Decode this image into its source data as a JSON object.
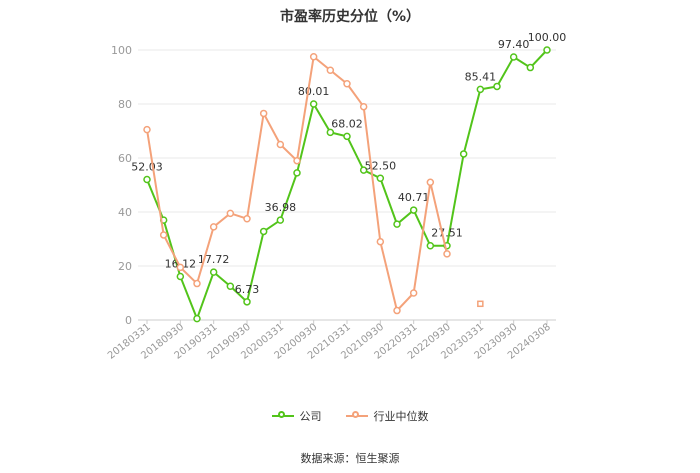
{
  "chart_data": {
    "type": "line",
    "title": "市盈率历史分位（%）",
    "xlabel": "",
    "ylabel": "",
    "ylim": [
      0,
      100
    ],
    "yticks": [
      0,
      20,
      40,
      60,
      80,
      100
    ],
    "grid": true,
    "legend_position": "bottom",
    "x": [
      "20180331",
      "20180630",
      "20180930",
      "20181231",
      "20190331",
      "20190630",
      "20190930",
      "20191231",
      "20200331",
      "20200630",
      "20200930",
      "20201231",
      "20210331",
      "20210630",
      "20210930",
      "20211231",
      "20220331",
      "20220630",
      "20220930",
      "20221231",
      "20230331",
      "20230630",
      "20230930",
      "20231231",
      "20240308"
    ],
    "x_tick_labels": [
      "20180331",
      "20180930",
      "20190331",
      "20190930",
      "20200331",
      "20200930",
      "20210331",
      "20210930",
      "20220331",
      "20220930",
      "20230331",
      "20230930",
      "20240308"
    ],
    "series": [
      {
        "name": "公司",
        "color": "#52c41a",
        "values": [
          52.03,
          37.0,
          16.12,
          0.5,
          17.72,
          12.5,
          6.73,
          32.8,
          36.98,
          54.5,
          80.01,
          69.5,
          68.02,
          55.5,
          52.5,
          35.5,
          40.71,
          27.5,
          27.51,
          61.5,
          85.41,
          86.5,
          97.4,
          93.5,
          100.0
        ],
        "data_labels": {
          "0": "52.03",
          "2": "16.12",
          "4": "17.72",
          "6": "6.73",
          "8": "36.98",
          "10": "80.01",
          "12": "68.02",
          "14": "52.50",
          "16": "40.71",
          "18": "27.51",
          "20": "85.41",
          "22": "97.40",
          "24": "100.00"
        }
      },
      {
        "name": "行业中位数",
        "color": "#f4a27a",
        "values": [
          70.5,
          31.5,
          19.5,
          13.5,
          34.5,
          39.5,
          37.5,
          76.5,
          65.0,
          59.0,
          97.5,
          92.5,
          87.5,
          79.0,
          29.0,
          3.5,
          10.0,
          51.0,
          24.5,
          null,
          6.0,
          null,
          null,
          null,
          null
        ]
      }
    ]
  },
  "source": "数据来源：恒生聚源"
}
